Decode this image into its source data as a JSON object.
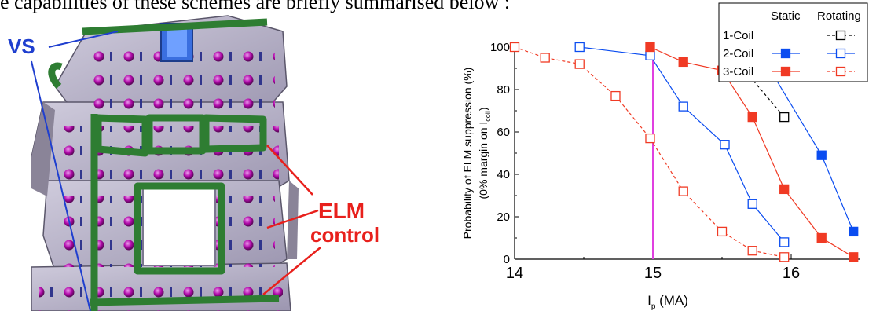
{
  "page": {
    "caption_fragment": "e capabilities of these schemes are briefly summarised below :"
  },
  "figure_left": {
    "label_vs": "VS",
    "label_elm": "ELM",
    "label_control": "control",
    "colors": {
      "vs": "#1f3fcf",
      "elm_text": "#e8201c",
      "coil": "#2e7d32",
      "vessel": "#b9b3c9",
      "bolt": "#b000a8"
    }
  },
  "chart_data": {
    "type": "line",
    "xlabel_main": "I",
    "xlabel_sub": "p",
    "xlabel_unit": " (MA)",
    "ylabel_line1": "Probability of ELM suppression (%)",
    "ylabel_line2_prefix": "(0% margin on I",
    "ylabel_line2_sub": "coil",
    "ylabel_line2_suffix": ")",
    "xlim": [
      14,
      16.5
    ],
    "ylim": [
      0,
      100
    ],
    "xticks": [
      14,
      15,
      16
    ],
    "yticks": [
      0,
      20,
      40,
      60,
      80,
      100
    ],
    "vertical_line": {
      "x": 15.0,
      "color": "#e040e0"
    },
    "legend": {
      "header_static": "Static",
      "header_rotating": "Rotating",
      "rows": [
        "1-Coil",
        "2-Coil",
        "3-Coil"
      ],
      "placement": "top-right"
    },
    "series": [
      {
        "name": "1-Coil Rotating",
        "color": "#000000",
        "marker": "open",
        "dash": true,
        "x": [
          15.52,
          15.95
        ],
        "y": [
          100,
          67
        ]
      },
      {
        "name": "2-Coil Static",
        "color": "#0a4cf0",
        "marker": "filled",
        "dash": false,
        "x": [
          15.75,
          16.22,
          16.45
        ],
        "y": [
          100,
          49,
          13
        ]
      },
      {
        "name": "2-Coil Rotating",
        "color": "#0a4cf0",
        "marker": "open",
        "dash": false,
        "x": [
          14.47,
          14.98,
          15.22,
          15.52,
          15.72,
          15.95
        ],
        "y": [
          100,
          96,
          72,
          54,
          26,
          8
        ]
      },
      {
        "name": "3-Coil Static",
        "color": "#f03a24",
        "marker": "filled",
        "dash": false,
        "x": [
          14.98,
          15.22,
          15.5,
          15.72,
          15.95,
          16.22,
          16.45
        ],
        "y": [
          100,
          93,
          89,
          67,
          33,
          10,
          1
        ]
      },
      {
        "name": "3-Coil Rotating",
        "color": "#f03a24",
        "marker": "open",
        "dash": true,
        "x": [
          14.0,
          14.22,
          14.47,
          14.73,
          14.98,
          15.22,
          15.5,
          15.72,
          15.95
        ],
        "y": [
          100,
          95,
          92,
          77,
          57,
          32,
          13,
          4,
          1
        ]
      }
    ]
  }
}
